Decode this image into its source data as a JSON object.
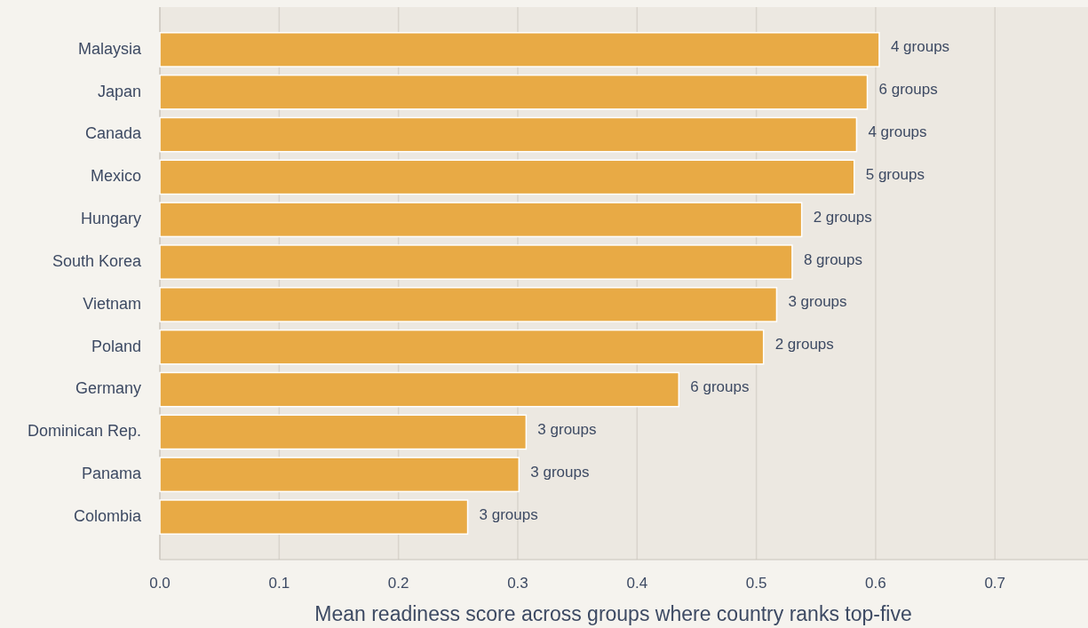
{
  "chart_data": {
    "type": "bar",
    "orientation": "horizontal",
    "xlabel": "Mean readiness score across groups where country ranks top-five",
    "categories": [
      "Malaysia",
      "Japan",
      "Canada",
      "Mexico",
      "Hungary",
      "South Korea",
      "Vietnam",
      "Poland",
      "Germany",
      "Dominican Rep.",
      "Panama",
      "Colombia"
    ],
    "values": [
      0.603,
      0.593,
      0.584,
      0.582,
      0.538,
      0.53,
      0.517,
      0.506,
      0.435,
      0.307,
      0.301,
      0.258
    ],
    "annotations": [
      {
        "text": "4 groups",
        "x": 0.603,
        "y": "Malaysia"
      },
      {
        "text": "6 groups",
        "x": 0.593,
        "y": "Japan"
      },
      {
        "text": "4 groups",
        "x": 0.584,
        "y": "Canada"
      },
      {
        "text": "5 groups",
        "x": 0.582,
        "y": "Mexico"
      },
      {
        "text": "2 groups",
        "x": 0.538,
        "y": "Hungary"
      },
      {
        "text": "8 groups",
        "x": 0.53,
        "y": "South Korea"
      },
      {
        "text": "3 groups",
        "x": 0.517,
        "y": "Vietnam"
      },
      {
        "text": "2 groups",
        "x": 0.506,
        "y": "Poland"
      },
      {
        "text": "6 groups",
        "x": 0.435,
        "y": "Germany"
      },
      {
        "text": "3 groups",
        "x": 0.307,
        "y": "Dominican Rep."
      },
      {
        "text": "3 groups",
        "x": 0.301,
        "y": "Panama"
      },
      {
        "text": "3 groups",
        "x": 0.258,
        "y": "Colombia"
      }
    ],
    "color": "#e8aa45",
    "xlim": [
      0,
      0.778
    ],
    "xticks": [
      {
        "value": 0,
        "label": "0.0"
      },
      0.1,
      0.2,
      0.3,
      0.4,
      0.5,
      0.6,
      0.7
    ],
    "grid": "x"
  }
}
